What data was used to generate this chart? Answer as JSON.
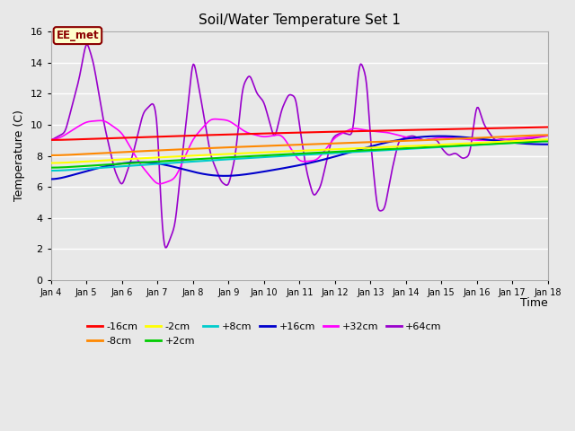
{
  "title": "Soil/Water Temperature Set 1",
  "xlabel": "Time",
  "ylabel": "Temperature (C)",
  "ylim": [
    0,
    16
  ],
  "yticks": [
    0,
    2,
    4,
    6,
    8,
    10,
    12,
    14,
    16
  ],
  "x_tick_labels": [
    "Jan 4",
    "Jan 5",
    "Jan 6",
    "Jan 7",
    "Jan 8",
    "Jan 9",
    "Jan 10",
    "Jan 11",
    "Jan 12",
    "Jan 13",
    "Jan 14",
    "Jan 15",
    "Jan 16",
    "Jan 17",
    "Jan 18"
  ],
  "fig_bg_color": "#e8e8e8",
  "plot_bg_color": "#e8e8e8",
  "grid_color": "#ffffff",
  "annotation_text": "EE_met",
  "annotation_bg": "#ffffcc",
  "annotation_border": "#8b0000",
  "series_colors": {
    "-16cm": "#ff0000",
    "-8cm": "#ff8800",
    "-2cm": "#ffff00",
    "+2cm": "#00cc00",
    "+8cm": "#00cccc",
    "+16cm": "#0000cc",
    "+32cm": "#ff00ff",
    "+64cm": "#9900cc"
  },
  "legend_order": [
    "-16cm",
    "-8cm",
    "-2cm",
    "+2cm",
    "+8cm",
    "+16cm",
    "+32cm",
    "+64cm"
  ],
  "legend_ncol": 6,
  "figsize": [
    6.4,
    4.8
  ],
  "dpi": 100
}
